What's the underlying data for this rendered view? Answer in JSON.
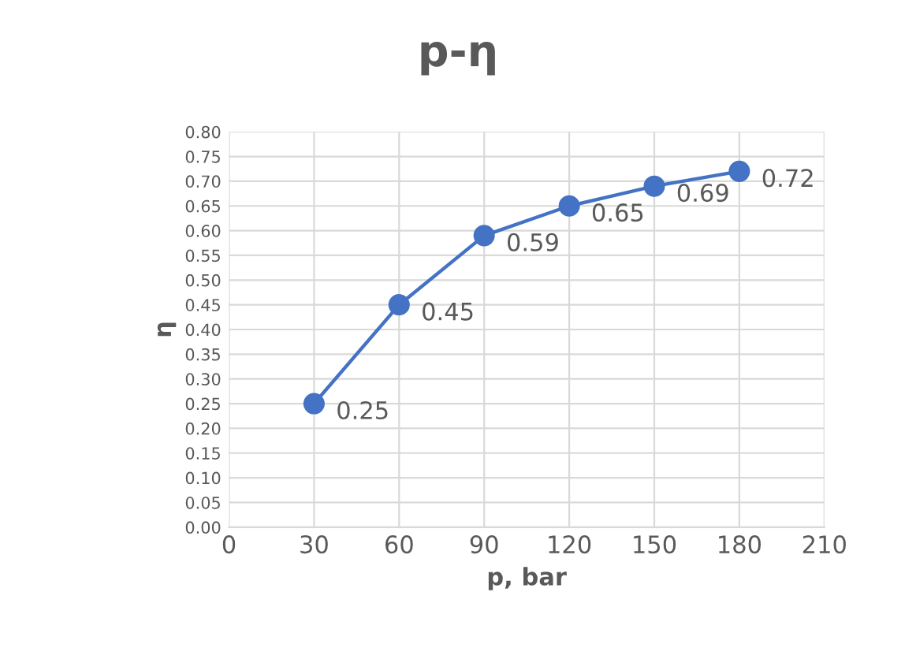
{
  "chart_data": {
    "type": "line",
    "title": "p-η",
    "xlabel": "p, bar",
    "ylabel": "η",
    "x": [
      30,
      60,
      90,
      120,
      150,
      180
    ],
    "series": [
      {
        "color": "#4472c4",
        "values": [
          0.25,
          0.45,
          0.59,
          0.65,
          0.69,
          0.72
        ]
      }
    ],
    "xlim": [
      0,
      210
    ],
    "xticks": [
      0,
      30,
      60,
      90,
      120,
      150,
      180,
      210
    ],
    "ylim": [
      0,
      0.8
    ],
    "yticks": [
      {
        "value": 0,
        "label": "0.00"
      },
      {
        "value": 0.05,
        "label": "0.05"
      },
      {
        "value": 0.1,
        "label": "0.10"
      },
      {
        "value": 0.15,
        "label": "0.15"
      },
      {
        "value": 0.2,
        "label": "0.20"
      },
      {
        "value": 0.25,
        "label": "0.25"
      },
      {
        "value": 0.3,
        "label": "0.30"
      },
      {
        "value": 0.35,
        "label": "0.35"
      },
      {
        "value": 0.4,
        "label": "0.40"
      },
      {
        "value": 0.45,
        "label": "0.45"
      },
      {
        "value": 0.5,
        "label": "0.50"
      },
      {
        "value": 0.55,
        "label": "0.55"
      },
      {
        "value": 0.6,
        "label": "0.60"
      },
      {
        "value": 0.65,
        "label": "0.65"
      },
      {
        "value": 0.7,
        "label": "0.70"
      },
      {
        "value": 0.75,
        "label": "0.75"
      },
      {
        "value": 0.8,
        "label": "0.80"
      }
    ],
    "grid": true,
    "marker": "circle",
    "line_style": "solid",
    "data_labels": true
  }
}
